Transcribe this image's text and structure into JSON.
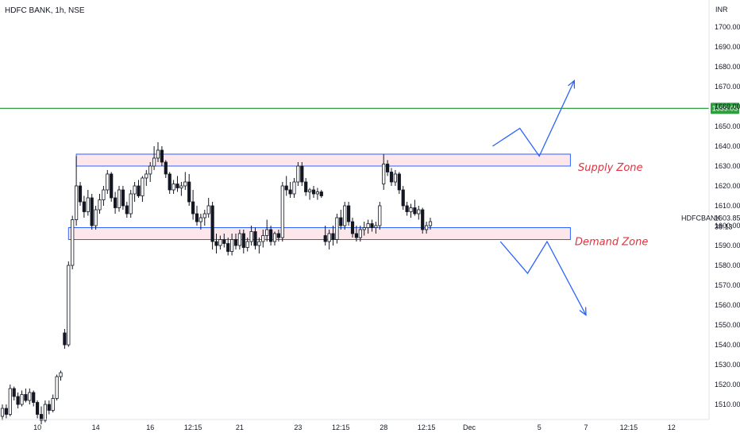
{
  "header": {
    "title": "HDFC BANK, 1h, NSE",
    "currency": "INR"
  },
  "colors": {
    "up": "#ffffff",
    "down": "#131722",
    "wick": "#131722",
    "green_line": "#2e9e3e",
    "zone_fill": "#fde7ea",
    "zone_border": "#2962ff",
    "arrow": "#2962ff",
    "zone_label": "#e0333f"
  },
  "chart_data": {
    "type": "candlestick",
    "ylim": [
      1500,
      1710
    ],
    "y_ticks": [
      1510,
      1520,
      1530,
      1540,
      1550,
      1560,
      1570,
      1580,
      1590,
      1600,
      1610,
      1620,
      1630,
      1640,
      1650,
      1660,
      1670,
      1680,
      1690,
      1700
    ],
    "y_tick_labels": [
      "1510.00",
      "1520.00",
      "1530.00",
      "1540.00",
      "1550.00",
      "1560.00",
      "1570.00",
      "1580.00",
      "1590.00",
      "1600.00",
      "1610.00",
      "1620.00",
      "1630.00",
      "1640.00",
      "1650.00",
      "1660.00",
      "1670.00",
      "1680.00",
      "1690.00",
      "1700.00"
    ],
    "x_tick_labels": [
      "10",
      "14",
      "16",
      "12:15",
      "21",
      "23",
      "12:15",
      "28",
      "12:15",
      "Dec",
      "5",
      "7",
      "12:15",
      "12"
    ],
    "x_tick_bar_index": [
      9,
      24,
      38,
      49,
      61,
      76,
      87,
      98,
      109,
      120,
      138,
      150,
      161,
      172
    ],
    "candles": [
      [
        1504,
        1510,
        1502,
        1508
      ],
      [
        1508,
        1510,
        1503,
        1505
      ],
      [
        1505,
        1520,
        1504,
        1518
      ],
      [
        1518,
        1519,
        1512,
        1514
      ],
      [
        1514,
        1516,
        1508,
        1510
      ],
      [
        1510,
        1517,
        1509,
        1515
      ],
      [
        1515,
        1518,
        1511,
        1512
      ],
      [
        1512,
        1518,
        1510,
        1516
      ],
      [
        1516,
        1517,
        1509,
        1511
      ],
      [
        1511,
        1512,
        1503,
        1505
      ],
      [
        1505,
        1509,
        1500,
        1502
      ],
      [
        1502,
        1512,
        1501,
        1510
      ],
      [
        1510,
        1512,
        1505,
        1507
      ],
      [
        1507,
        1515,
        1506,
        1513
      ],
      [
        1513,
        1525,
        1512,
        1524
      ],
      [
        1524,
        1527,
        1522,
        1526
      ],
      [
        1546,
        1548,
        1538,
        1540
      ],
      [
        1540,
        1582,
        1539,
        1580
      ],
      [
        1580,
        1605,
        1578,
        1603
      ],
      [
        1603,
        1635,
        1600,
        1620
      ],
      [
        1620,
        1622,
        1610,
        1612
      ],
      [
        1612,
        1615,
        1604,
        1607
      ],
      [
        1607,
        1618,
        1605,
        1614
      ],
      [
        1614,
        1616,
        1598,
        1600
      ],
      [
        1600,
        1610,
        1598,
        1608
      ],
      [
        1608,
        1616,
        1606,
        1613
      ],
      [
        1613,
        1620,
        1610,
        1618
      ],
      [
        1618,
        1628,
        1616,
        1626
      ],
      [
        1626,
        1627,
        1612,
        1614
      ],
      [
        1614,
        1617,
        1606,
        1609
      ],
      [
        1609,
        1620,
        1607,
        1618
      ],
      [
        1618,
        1620,
        1608,
        1610
      ],
      [
        1610,
        1612,
        1604,
        1606
      ],
      [
        1606,
        1618,
        1604,
        1616
      ],
      [
        1616,
        1622,
        1612,
        1620
      ],
      [
        1620,
        1623,
        1614,
        1615
      ],
      [
        1615,
        1625,
        1612,
        1624
      ],
      [
        1624,
        1628,
        1620,
        1626
      ],
      [
        1626,
        1632,
        1622,
        1630
      ],
      [
        1630,
        1640,
        1628,
        1634
      ],
      [
        1634,
        1642,
        1632,
        1638
      ],
      [
        1638,
        1640,
        1630,
        1632
      ],
      [
        1632,
        1633,
        1624,
        1626
      ],
      [
        1626,
        1627,
        1616,
        1618
      ],
      [
        1618,
        1623,
        1616,
        1621
      ],
      [
        1621,
        1625,
        1617,
        1619
      ],
      [
        1619,
        1622,
        1615,
        1620
      ],
      [
        1620,
        1627,
        1618,
        1622
      ],
      [
        1622,
        1626,
        1610,
        1612
      ],
      [
        1612,
        1618,
        1603,
        1606
      ],
      [
        1606,
        1610,
        1600,
        1602
      ],
      [
        1602,
        1606,
        1598,
        1604
      ],
      [
        1604,
        1608,
        1600,
        1606
      ],
      [
        1606,
        1614,
        1604,
        1610
      ],
      [
        1610,
        1612,
        1588,
        1592
      ],
      [
        1592,
        1596,
        1586,
        1590
      ],
      [
        1590,
        1595,
        1588,
        1593
      ],
      [
        1593,
        1596,
        1589,
        1591
      ],
      [
        1591,
        1594,
        1585,
        1587
      ],
      [
        1587,
        1596,
        1585,
        1593
      ],
      [
        1593,
        1596,
        1588,
        1590
      ],
      [
        1590,
        1598,
        1588,
        1596
      ],
      [
        1596,
        1598,
        1586,
        1589
      ],
      [
        1589,
        1594,
        1587,
        1592
      ],
      [
        1592,
        1600,
        1590,
        1597
      ],
      [
        1597,
        1599,
        1588,
        1590
      ],
      [
        1590,
        1594,
        1586,
        1592
      ],
      [
        1592,
        1598,
        1589,
        1595
      ],
      [
        1595,
        1603,
        1592,
        1598
      ],
      [
        1598,
        1600,
        1590,
        1592
      ],
      [
        1592,
        1597,
        1590,
        1596
      ],
      [
        1596,
        1598,
        1592,
        1594
      ],
      [
        1594,
        1622,
        1592,
        1620
      ],
      [
        1620,
        1625,
        1615,
        1618
      ],
      [
        1618,
        1622,
        1614,
        1616
      ],
      [
        1616,
        1624,
        1614,
        1622
      ],
      [
        1622,
        1632,
        1620,
        1630
      ],
      [
        1630,
        1632,
        1620,
        1622
      ],
      [
        1622,
        1624,
        1615,
        1617
      ],
      [
        1617,
        1619,
        1613,
        1618
      ],
      [
        1618,
        1620,
        1614,
        1616
      ],
      [
        1616,
        1619,
        1613,
        1617
      ],
      [
        1617,
        1618,
        1614,
        1615
      ],
      [
        1595,
        1600,
        1590,
        1592
      ],
      [
        1592,
        1598,
        1588,
        1596
      ],
      [
        1596,
        1600,
        1590,
        1593
      ],
      [
        1593,
        1606,
        1591,
        1604
      ],
      [
        1604,
        1608,
        1598,
        1600
      ],
      [
        1600,
        1612,
        1598,
        1610
      ],
      [
        1610,
        1612,
        1600,
        1602
      ],
      [
        1602,
        1604,
        1594,
        1596
      ],
      [
        1596,
        1600,
        1592,
        1594
      ],
      [
        1594,
        1600,
        1592,
        1598
      ],
      [
        1598,
        1602,
        1595,
        1599
      ],
      [
        1599,
        1603,
        1596,
        1601
      ],
      [
        1601,
        1603,
        1597,
        1599
      ],
      [
        1599,
        1602,
        1596,
        1600
      ],
      [
        1600,
        1612,
        1598,
        1610
      ],
      [
        1621,
        1636,
        1618,
        1631
      ],
      [
        1631,
        1633,
        1625,
        1627
      ],
      [
        1627,
        1629,
        1620,
        1622
      ],
      [
        1622,
        1628,
        1620,
        1626
      ],
      [
        1626,
        1627,
        1616,
        1618
      ],
      [
        1618,
        1620,
        1608,
        1610
      ],
      [
        1610,
        1612,
        1605,
        1607
      ],
      [
        1607,
        1611,
        1604,
        1609
      ],
      [
        1609,
        1613,
        1605,
        1606
      ],
      [
        1606,
        1610,
        1603,
        1608
      ],
      [
        1608,
        1609,
        1596,
        1598
      ],
      [
        1598,
        1602,
        1596,
        1600
      ],
      [
        1600,
        1604,
        1598,
        1602
      ]
    ],
    "horizontal_line": {
      "value": 1659.05,
      "label": "1659.05"
    },
    "zones": [
      {
        "name": "Supply Zone",
        "low": 1630,
        "high": 1636
      },
      {
        "name": "Demand Zone",
        "low": 1593,
        "high": 1599
      }
    ],
    "projection_up": [
      [
        126,
        1640
      ],
      [
        133,
        1649
      ],
      [
        138,
        1635
      ],
      [
        147,
        1673
      ]
    ],
    "projection_down": [
      [
        128,
        1592
      ],
      [
        135,
        1576
      ],
      [
        140,
        1592
      ],
      [
        150,
        1555
      ]
    ],
    "last_price": "1603.85",
    "countdown": "38:13",
    "ticker": "HDFCBANK"
  }
}
